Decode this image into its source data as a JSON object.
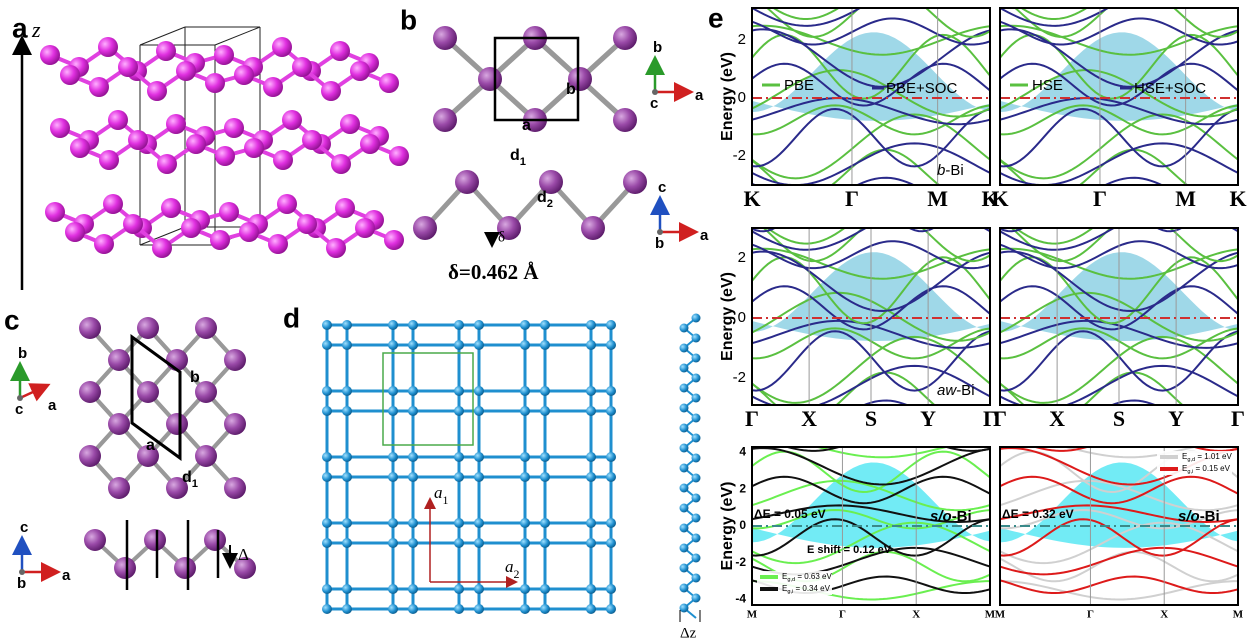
{
  "a": {
    "label": "a",
    "axis": "z"
  },
  "b": {
    "label": "b",
    "cell": [
      "a",
      "b"
    ],
    "top_axes": [
      "b",
      "c",
      "a"
    ],
    "d1": {
      "main": "d",
      "sub": "1"
    },
    "d2": {
      "main": "d",
      "sub": "2"
    },
    "delta": "δ",
    "buckling": "δ=0.462 Å",
    "side_axes": [
      "c",
      "b",
      "a"
    ]
  },
  "c": {
    "label": "c",
    "cell": [
      "b",
      "a"
    ],
    "d1": {
      "main": "d",
      "sub": "1"
    },
    "top_axes": [
      "b",
      "c",
      "a"
    ],
    "delta": "Δ",
    "side_axes": [
      "c",
      "b",
      "a"
    ]
  },
  "d": {
    "label": "d",
    "a1": {
      "main": "a",
      "sub": "1"
    },
    "a2": {
      "main": "a",
      "sub": "2"
    },
    "dz": "Δz"
  },
  "e": {
    "label": "e",
    "plots": [
      {
        "ylabel": "Energy (eV)",
        "yticks": [
          "2",
          "0",
          "-2"
        ],
        "xlabels": [
          "K",
          "Γ",
          "M",
          "K"
        ],
        "legend": [
          "PBE",
          "PBE+SOC"
        ],
        "note": {
          "italic": "b",
          "rest": "-Bi"
        }
      },
      {
        "xlabels": [
          "K",
          "Γ",
          "M",
          "K"
        ],
        "legend": [
          "HSE",
          "HSE+SOC"
        ]
      },
      {
        "ylabel": "Energy (eV)",
        "yticks": [
          "2",
          "0",
          "-2"
        ],
        "xlabels": [
          "Γ",
          "X",
          "S",
          "Y",
          "Γ"
        ],
        "note": {
          "italic": "aw",
          "rest": "-Bi"
        }
      },
      {
        "xlabels": [
          "Γ",
          "X",
          "S",
          "Y",
          "Γ"
        ]
      },
      {
        "ylabel": "Energy (eV)",
        "yticks": [
          "4",
          "2",
          "0",
          "-2",
          "-4"
        ],
        "xlabels": [
          "M",
          "Γ",
          "X",
          "M"
        ],
        "gap_note": "ΔE = 0.05 eV",
        "note": {
          "italic": "s/o",
          "rest": "-Bi"
        },
        "shift": "E shift = 0.12 eV",
        "gaps": [
          {
            "main": "E",
            "sub": "g,d",
            "rest": " = 0.63 eV"
          },
          {
            "main": "E",
            "sub": "g,i",
            "rest": " = 0.34 eV"
          }
        ]
      },
      {
        "xlabels": [
          "M",
          "Γ",
          "X",
          "M"
        ],
        "gap_note": "ΔE = 0.32 eV",
        "note": {
          "italic": "s/o",
          "rest": "-Bi"
        },
        "gaps": [
          {
            "main": "E",
            "sub": "g,d",
            "rest": " = 1.01 eV"
          },
          {
            "main": "E",
            "sub": "g,i",
            "rest": " = 0.15 eV"
          }
        ]
      }
    ]
  }
}
